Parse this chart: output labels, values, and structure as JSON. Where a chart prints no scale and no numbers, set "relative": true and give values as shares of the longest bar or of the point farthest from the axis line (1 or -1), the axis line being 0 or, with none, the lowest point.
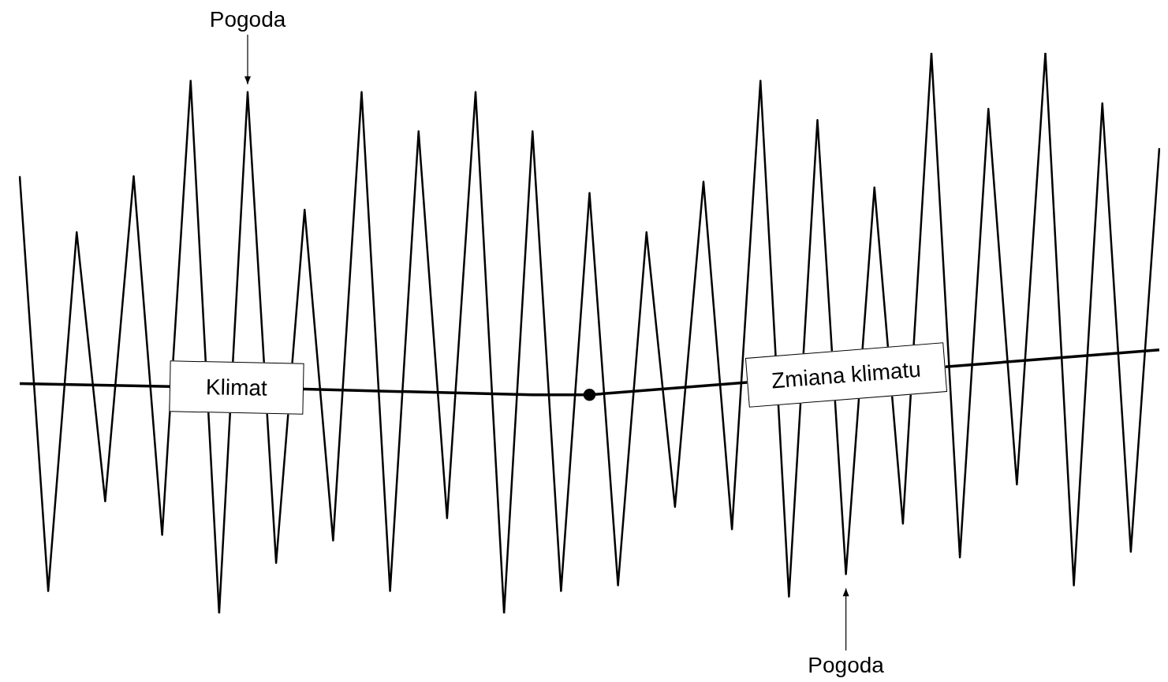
{
  "chart_data": {
    "type": "line",
    "relative": true,
    "legend": false,
    "marker": "none",
    "line_style": "solid",
    "categories": [
      null,
      null,
      null,
      null,
      null,
      null,
      null,
      null,
      null,
      null,
      null,
      null,
      null,
      null,
      null,
      null,
      null,
      null,
      null,
      null,
      null,
      null,
      null,
      null,
      null,
      null,
      null,
      null,
      null,
      null,
      null,
      null,
      null,
      null,
      null,
      null,
      null,
      null,
      null,
      null,
      null
    ],
    "series": [
      {
        "name": "Pogoda",
        "color": "#000000",
        "values": [
          0.78,
          0.04,
          0.68,
          0.2,
          0.78,
          0.14,
          0.95,
          0,
          0.93,
          0.09,
          0.72,
          0.13,
          0.93,
          0.04,
          0.86,
          0.17,
          0.93,
          0,
          0.86,
          0.04,
          0.75,
          0.05,
          0.68,
          0.19,
          0.77,
          0.15,
          0.95,
          0.03,
          0.88,
          0.07,
          0.76,
          0.16,
          1,
          0.1,
          0.9,
          0.23,
          1,
          0.05,
          0.91,
          0.11,
          0.83
        ]
      },
      {
        "name": "Klimat",
        "color": "#000000",
        "values": [
          0.41,
          null,
          null,
          null,
          null,
          null,
          null,
          null,
          null,
          null,
          0.4,
          null,
          null,
          null,
          null,
          null,
          null,
          null,
          0.39,
          null,
          0.39,
          null,
          null,
          null,
          null,
          null,
          null,
          null,
          null,
          null,
          null,
          null,
          null,
          null,
          null,
          null,
          null,
          null,
          null,
          null,
          null
        ]
      },
      {
        "name": "Zmiana klimatu",
        "color": "#000000",
        "values": [
          null,
          null,
          null,
          null,
          null,
          null,
          null,
          null,
          null,
          null,
          null,
          null,
          null,
          null,
          null,
          null,
          null,
          null,
          null,
          null,
          0.39,
          null,
          null,
          null,
          null,
          null,
          null,
          null,
          null,
          null,
          null,
          null,
          null,
          null,
          null,
          0.45,
          null,
          null,
          null,
          null,
          0.47
        ]
      }
    ]
  }
}
